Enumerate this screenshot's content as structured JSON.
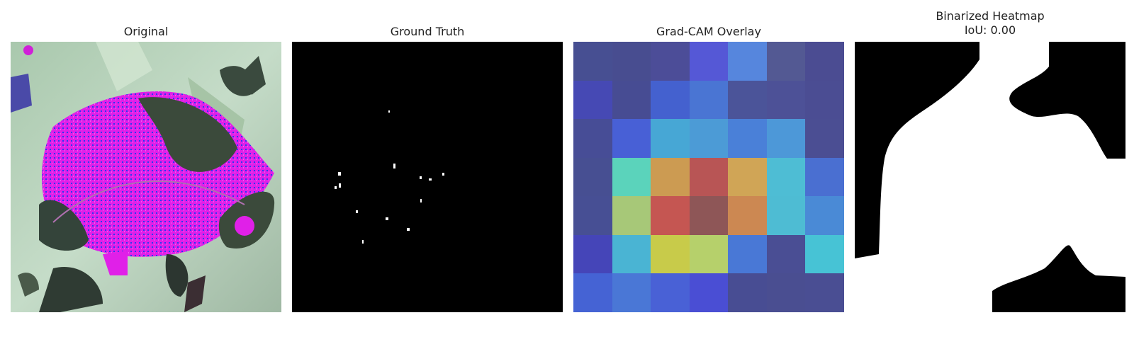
{
  "panels": [
    {
      "title": "Original"
    },
    {
      "title": "Ground Truth"
    },
    {
      "title": "Grad-CAM Overlay"
    },
    {
      "title": "Binarized Heatmap",
      "subtitle": "IoU: 0.00"
    }
  ],
  "heatmap_grid": [
    [
      "#474f92",
      "#484d90",
      "#4c4d98",
      "#5558d6",
      "#5686dd",
      "#535993",
      "#4b4c92"
    ],
    [
      "#4649b4",
      "#474c93",
      "#4461cf",
      "#4a75d3",
      "#4b5499",
      "#4d5197",
      "#4b4d93"
    ],
    [
      "#474d96",
      "#4860d6",
      "#47a7d5",
      "#4c9bd6",
      "#4a80d8",
      "#4d98d8",
      "#4b4e93"
    ],
    [
      "#474f92",
      "#5bd3bb",
      "#cc9b52",
      "#b85555",
      "#d0a556",
      "#4ebdd4",
      "#4a6fd1"
    ],
    [
      "#474f94",
      "#a7c878",
      "#c55652",
      "#8e5657",
      "#cc8852",
      "#4ebcd3",
      "#4a8ad6"
    ],
    [
      "#4545b8",
      "#4ab4d3",
      "#c8cb4a",
      "#b6d06b",
      "#4978d6",
      "#4a4e94",
      "#47c3d5"
    ],
    [
      "#4563d4",
      "#4a77d6",
      "#4961d6",
      "#4a4ed4",
      "#484d93",
      "#4a4e91",
      "#4a4e93"
    ]
  ],
  "colors": {
    "leaf_magenta": "#e020e8",
    "leaf_dark": "#3b4a3b",
    "background_green": "#b8d4bc",
    "mask_white": "#ffffff",
    "mask_black": "#000000"
  }
}
